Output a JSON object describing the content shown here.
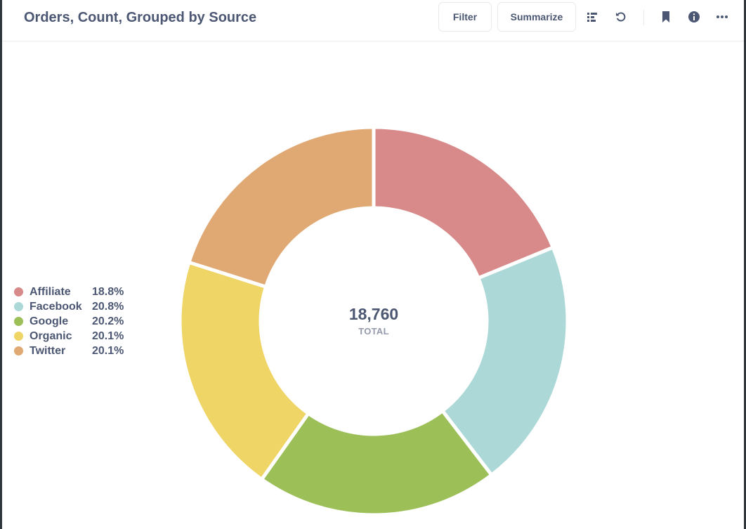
{
  "header": {
    "title": "Orders, Count, Grouped by Source",
    "filter_label": "Filter",
    "summarize_label": "Summarize",
    "icons": [
      "list-icon",
      "refresh-icon",
      "bookmark-icon",
      "info-icon",
      "more-icon"
    ]
  },
  "legend": {
    "items": [
      {
        "name": "Affiliate",
        "pct": "18.8%"
      },
      {
        "name": "Facebook",
        "pct": "20.8%"
      },
      {
        "name": "Google",
        "pct": "20.2%"
      },
      {
        "name": "Organic",
        "pct": "20.1%"
      },
      {
        "name": "Twitter",
        "pct": "20.1%"
      }
    ]
  },
  "center": {
    "total": "18,760",
    "label": "TOTAL"
  },
  "chart_data": {
    "type": "pie",
    "title": "Orders, Count, Grouped by Source",
    "categories": [
      "Affiliate",
      "Facebook",
      "Google",
      "Organic",
      "Twitter"
    ],
    "values": [
      18.8,
      20.8,
      20.2,
      20.1,
      20.1
    ],
    "total": 18760,
    "colors": [
      "#d88a8a",
      "#acd8d8",
      "#9cc057",
      "#efd466",
      "#e0a872"
    ],
    "donut": true,
    "legend_position": "left"
  }
}
